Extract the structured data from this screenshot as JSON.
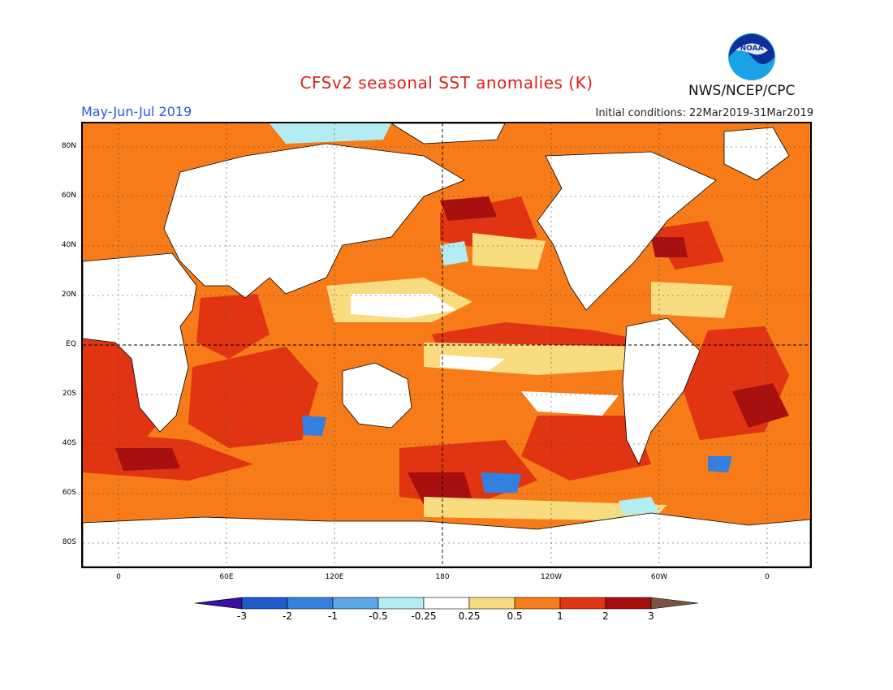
{
  "header": {
    "title": "CFSv2 seasonal SST anomalies (K)",
    "season": "May-Jun-Jul 2019",
    "initial_conditions": "Initial conditions: 22Mar2019-31Mar2019",
    "agency": "NWS/NCEP/CPC",
    "logo_text": "NOAA"
  },
  "map": {
    "lat_labels": [
      "80N",
      "60N",
      "40N",
      "20N",
      "EQ",
      "20S",
      "40S",
      "60S",
      "80S"
    ],
    "lon_labels": [
      "0",
      "60E",
      "120E",
      "180",
      "120W",
      "60W",
      "0"
    ]
  },
  "legend": {
    "labels": [
      "-3",
      "-2",
      "-1",
      "-0.5",
      "-0.25",
      "0.25",
      "0.5",
      "1",
      "2",
      "3"
    ],
    "colors": [
      "#3a10a0",
      "#1c5ccc",
      "#3480e0",
      "#5ca6ec",
      "#b4ecf4",
      "#ffffff",
      "#fadc80",
      "#f77b18",
      "#e03412",
      "#a80f0f",
      "#7a5443"
    ]
  }
}
